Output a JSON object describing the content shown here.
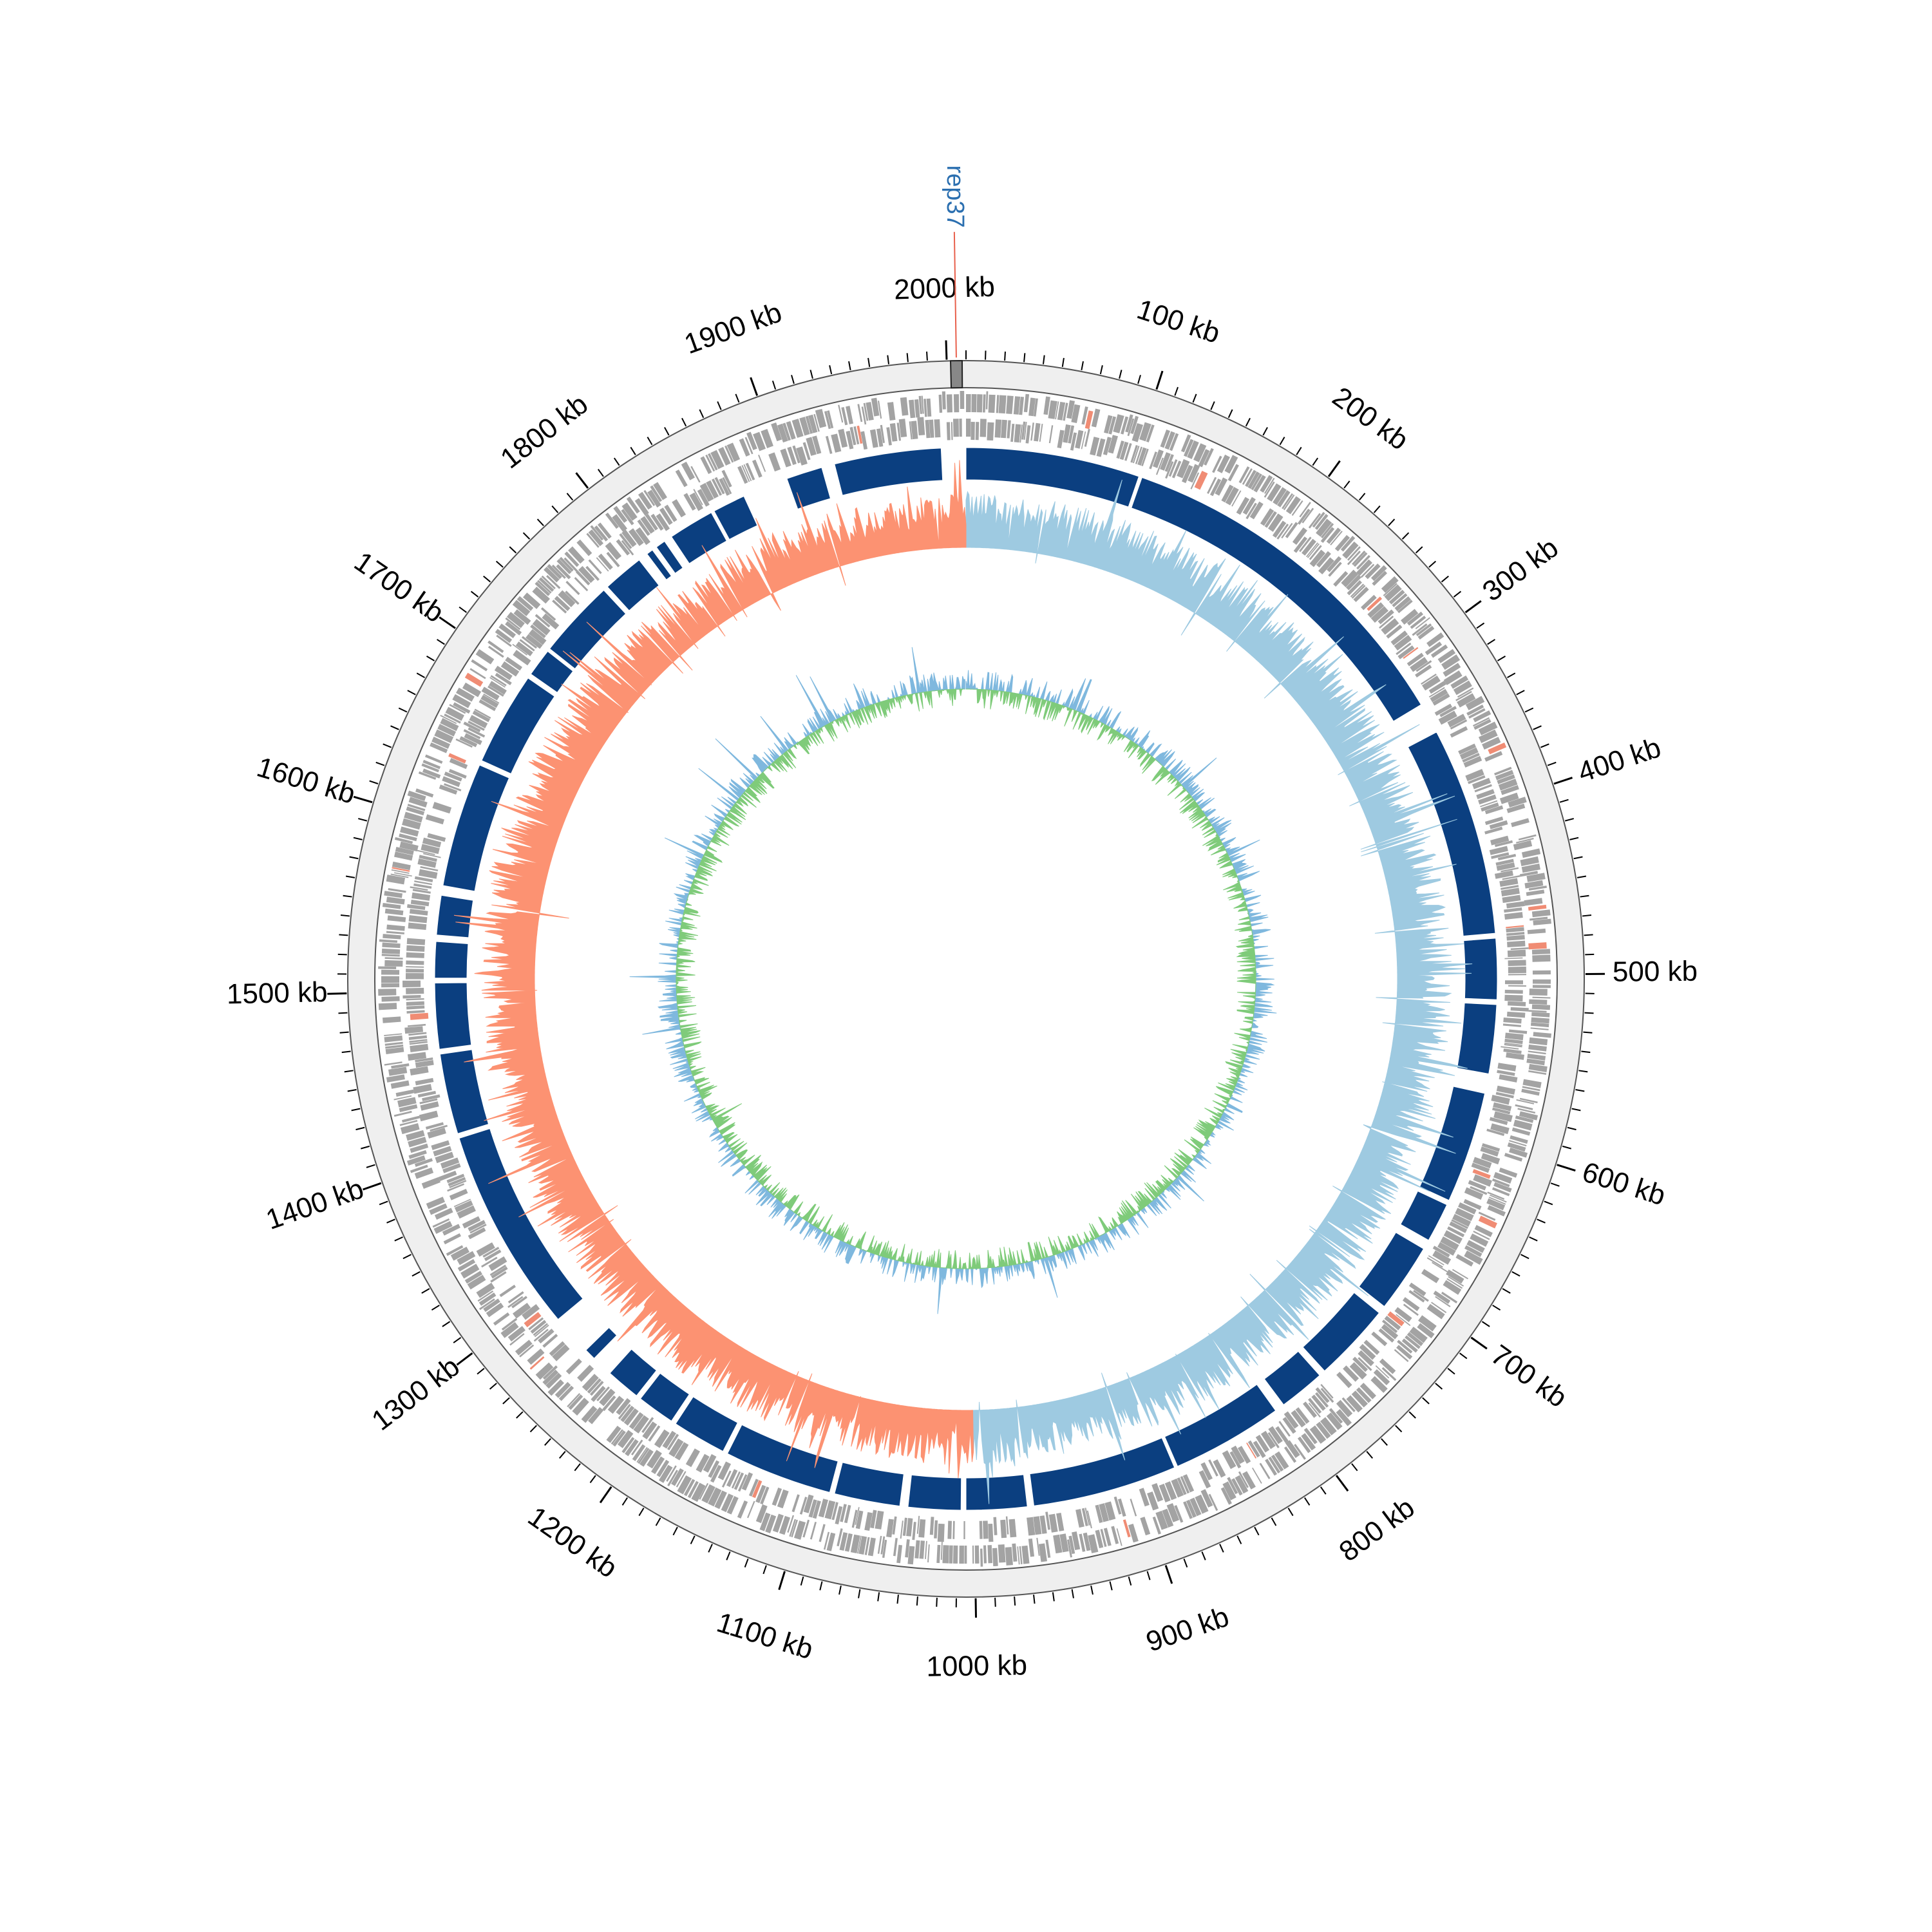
{
  "chart_data": {
    "type": "circular-genome-map",
    "title": "",
    "genome_length_kb": 2010,
    "units": "kb",
    "tick_labels": [
      "100 kb",
      "200 kb",
      "300 kb",
      "400 kb",
      "500 kb",
      "600 kb",
      "700 kb",
      "800 kb",
      "900 kb",
      "1000 kb",
      "1100 kb",
      "1200 kb",
      "1300 kb",
      "1400 kb",
      "1500 kb",
      "1600 kb",
      "1700 kb",
      "1800 kb",
      "1900 kb",
      "2000 kb"
    ],
    "tick_positions_kb": [
      100,
      200,
      300,
      400,
      500,
      600,
      700,
      800,
      900,
      1000,
      1100,
      1200,
      1300,
      1400,
      1500,
      1600,
      1700,
      1800,
      1900,
      2000
    ],
    "minor_tick_step_kb": 10,
    "marker": {
      "label": "rep37",
      "position_kb": 2005,
      "label_color": "#2b6fb0",
      "line_color": "#e8604c"
    },
    "tracks": [
      {
        "name": "backbone",
        "color": "#efefef",
        "outline": "#555555"
      },
      {
        "name": "cds-forward",
        "color": "#a3a3a3",
        "highlight_color": "#f08c74"
      },
      {
        "name": "cds-reverse",
        "color": "#a3a3a3"
      },
      {
        "name": "syntenic-blocks",
        "color": "#0b3f80",
        "blocks_kb": [
          [
            0,
            106
          ],
          [
            108,
            329
          ],
          [
            348,
            475
          ],
          [
            478,
            515
          ],
          [
            518,
            560
          ],
          [
            572,
            640
          ],
          [
            643,
            667
          ],
          [
            673,
            715
          ],
          [
            720,
            768
          ],
          [
            772,
            800
          ],
          [
            806,
            874
          ],
          [
            876,
            964
          ],
          [
            968,
            1005
          ],
          [
            1008,
            1040
          ],
          [
            1045,
            1085
          ],
          [
            1088,
            1154
          ],
          [
            1157,
            1190
          ],
          [
            1193,
            1216
          ],
          [
            1219,
            1240
          ],
          [
            1253,
            1260
          ],
          [
            1285,
            1410
          ],
          [
            1413,
            1462
          ],
          [
            1465,
            1505
          ],
          [
            1508,
            1530
          ],
          [
            1534,
            1558
          ],
          [
            1564,
            1640
          ],
          [
            1643,
            1700
          ],
          [
            1703,
            1720
          ],
          [
            1722,
            1770
          ],
          [
            1773,
            1798
          ],
          [
            1804,
            1808
          ],
          [
            1811,
            1817
          ],
          [
            1822,
            1850
          ],
          [
            1852,
            1872
          ],
          [
            1900,
            1922
          ],
          [
            1930,
            1995
          ]
        ]
      },
      {
        "name": "gc-skew",
        "positive_color": "#9ecae1",
        "negative_color": "#fc9272",
        "switch_kb": [
          0,
          1000
        ]
      },
      {
        "name": "gc-content",
        "above_color": "#7fb8de",
        "below_color": "#7fcb7a"
      }
    ]
  }
}
